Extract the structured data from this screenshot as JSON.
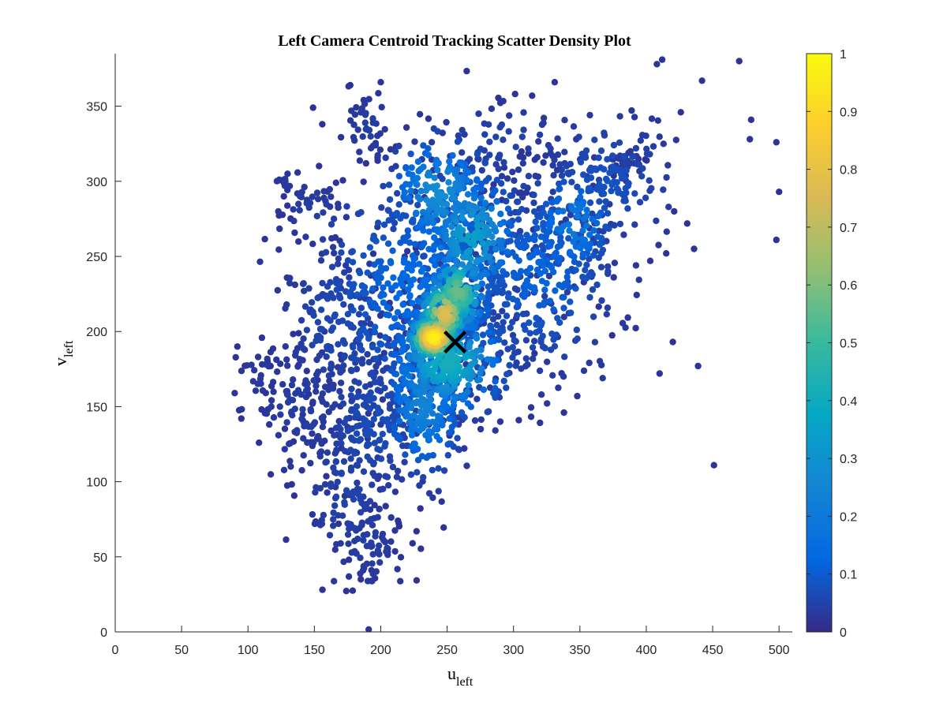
{
  "chart_data": {
    "type": "scatter",
    "title": "Left Camera Centroid Tracking Scatter Density Plot",
    "xlabel": "u",
    "xlabel_subscript": "left",
    "ylabel": "v",
    "ylabel_subscript": "left",
    "xlim": [
      0,
      510
    ],
    "ylim": [
      0,
      385
    ],
    "x_ticks": [
      0,
      50,
      100,
      150,
      200,
      250,
      300,
      350,
      400,
      450,
      500
    ],
    "y_ticks": [
      0,
      50,
      100,
      150,
      200,
      250,
      300,
      350
    ],
    "grid": false,
    "colorbar": {
      "ticks": [
        0,
        0.1,
        0.2,
        0.3,
        0.4,
        0.5,
        0.6,
        0.7,
        0.8,
        0.9,
        1
      ],
      "range": [
        0,
        1
      ],
      "colormap": "parula",
      "colors": [
        "#352A87",
        "#0268E1",
        "#1485D4",
        "#06A7C6",
        "#38B99E",
        "#92BF73",
        "#D9BA56",
        "#FCCE2E",
        "#F9FB0E"
      ]
    },
    "marker": {
      "symbol": "x",
      "x": 256,
      "y": 193,
      "color": "#000000"
    },
    "clusters": [
      {
        "x": 240,
        "y": 196,
        "sx": 10,
        "sy": 8,
        "n": 260,
        "density": 0.95
      },
      {
        "x": 248,
        "y": 212,
        "sx": 10,
        "sy": 12,
        "n": 200,
        "density": 0.75
      },
      {
        "x": 258,
        "y": 226,
        "sx": 12,
        "sy": 14,
        "n": 170,
        "density": 0.55
      },
      {
        "x": 250,
        "y": 180,
        "sx": 22,
        "sy": 18,
        "n": 340,
        "density": 0.4
      },
      {
        "x": 268,
        "y": 262,
        "sx": 18,
        "sy": 22,
        "n": 230,
        "density": 0.33
      },
      {
        "x": 245,
        "y": 292,
        "sx": 20,
        "sy": 20,
        "n": 200,
        "density": 0.26
      },
      {
        "x": 232,
        "y": 152,
        "sx": 16,
        "sy": 24,
        "n": 230,
        "density": 0.22
      },
      {
        "x": 235,
        "y": 225,
        "sx": 45,
        "sy": 42,
        "n": 540,
        "density": 0.12
      },
      {
        "x": 320,
        "y": 240,
        "sx": 30,
        "sy": 35,
        "n": 280,
        "density": 0.1
      },
      {
        "x": 345,
        "y": 272,
        "sx": 16,
        "sy": 18,
        "n": 120,
        "density": 0.18
      },
      {
        "x": 370,
        "y": 300,
        "sx": 26,
        "sy": 22,
        "n": 150,
        "density": 0.06
      },
      {
        "x": 165,
        "y": 205,
        "sx": 22,
        "sy": 30,
        "n": 150,
        "density": 0.04
      },
      {
        "x": 195,
        "y": 140,
        "sx": 22,
        "sy": 28,
        "n": 180,
        "density": 0.05
      },
      {
        "x": 175,
        "y": 95,
        "sx": 18,
        "sy": 28,
        "n": 110,
        "density": 0.03
      },
      {
        "x": 190,
        "y": 60,
        "sx": 12,
        "sy": 18,
        "n": 55,
        "density": 0.02
      },
      {
        "x": 140,
        "y": 150,
        "sx": 16,
        "sy": 22,
        "n": 90,
        "density": 0.02
      },
      {
        "x": 108,
        "y": 168,
        "sx": 10,
        "sy": 12,
        "n": 25,
        "density": 0.01
      },
      {
        "x": 190,
        "y": 335,
        "sx": 8,
        "sy": 12,
        "n": 45,
        "density": 0.02
      },
      {
        "x": 130,
        "y": 300,
        "sx": 8,
        "sy": 5,
        "n": 15,
        "density": 0.01
      },
      {
        "x": 150,
        "y": 280,
        "sx": 14,
        "sy": 12,
        "n": 40,
        "density": 0.02
      },
      {
        "x": 290,
        "y": 325,
        "sx": 30,
        "sy": 15,
        "n": 60,
        "density": 0.03
      },
      {
        "x": 385,
        "y": 312,
        "sx": 7,
        "sy": 5,
        "n": 30,
        "density": 0.02
      }
    ],
    "outliers": [
      [
        470,
        380
      ],
      [
        412,
        381
      ],
      [
        408,
        378
      ],
      [
        442,
        367
      ],
      [
        479,
        341
      ],
      [
        478,
        328
      ],
      [
        498,
        326
      ],
      [
        500,
        293
      ],
      [
        498,
        261
      ],
      [
        421,
        280
      ],
      [
        436,
        255
      ],
      [
        415,
        252
      ],
      [
        403,
        247
      ],
      [
        420,
        193
      ],
      [
        439,
        177
      ],
      [
        410,
        172
      ],
      [
        451,
        111
      ],
      [
        426,
        346
      ],
      [
        388,
        320
      ],
      [
        331,
        366
      ],
      [
        314,
        357
      ],
      [
        200,
        366
      ],
      [
        92,
        190
      ],
      [
        90,
        159
      ],
      [
        95,
        142
      ],
      [
        117,
        177
      ],
      [
        304,
        141
      ],
      [
        338,
        146
      ],
      [
        348,
        157
      ],
      [
        290,
        140
      ],
      [
        224,
        59
      ],
      [
        201,
        63
      ],
      [
        213,
        74
      ],
      [
        185,
        35
      ],
      [
        193,
        41
      ],
      [
        176,
        48
      ],
      [
        149,
        349
      ],
      [
        156,
        338
      ],
      [
        163,
        262
      ],
      [
        127,
        290
      ]
    ]
  }
}
